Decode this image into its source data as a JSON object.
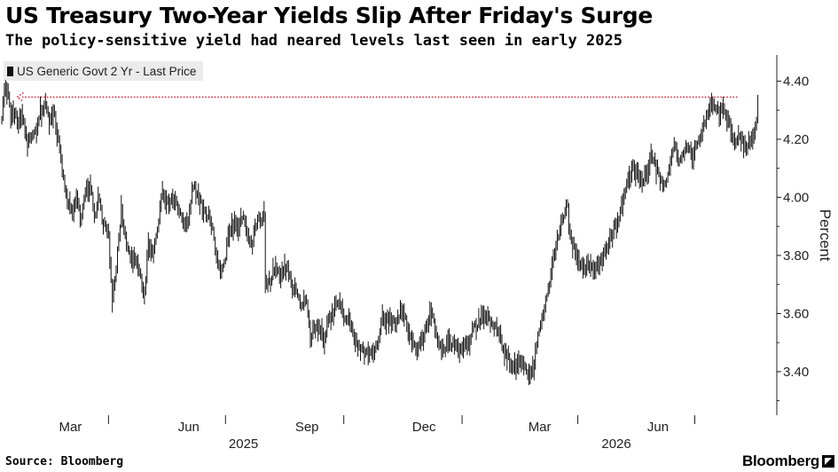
{
  "title": "US Treasury Two-Year Yields Slip After Friday's Surge",
  "subtitle": "The policy-sensitive yield had neared levels last seen in early 2025",
  "legend_label": "US Generic Govt 2 Yr - Last Price",
  "source": "Source: Bloomberg",
  "brand": "Bloomberg",
  "colors": {
    "series": "#111111",
    "arrow": "#e0203a",
    "axis": "#222222",
    "legend_bg": "#ebebeb"
  },
  "chart_data": {
    "type": "line",
    "style": "daily high-low bars",
    "ylabel": "Percent",
    "ylim": [
      3.25,
      4.49
    ],
    "yticks": [
      "4.40",
      "4.20",
      "4.00",
      "3.80",
      "3.60",
      "3.40"
    ],
    "x_month_labels": [
      "Mar",
      "Jun",
      "Sep",
      "Dec",
      "Mar",
      "Jun"
    ],
    "x_year_labels": [
      "2025",
      "2026"
    ],
    "x_start": "2025-01-08",
    "x_end": "2026-08-20",
    "annotation": {
      "type": "arrow",
      "from": "2026-08-03",
      "to": "2025-01-20",
      "level": 4.345,
      "style": "dotted"
    },
    "series": [
      {
        "name": "US Generic Govt 2 Yr - Last Price",
        "points": [
          [
            "2025-01-08",
            4.28
          ],
          [
            "2025-01-10",
            4.36
          ],
          [
            "2025-01-13",
            4.38
          ],
          [
            "2025-01-15",
            4.27
          ],
          [
            "2025-01-17",
            4.3
          ],
          [
            "2025-01-21",
            4.25
          ],
          [
            "2025-01-24",
            4.28
          ],
          [
            "2025-01-28",
            4.19
          ],
          [
            "2025-01-31",
            4.21
          ],
          [
            "2025-02-04",
            4.22
          ],
          [
            "2025-02-07",
            4.29
          ],
          [
            "2025-02-11",
            4.32
          ],
          [
            "2025-02-14",
            4.26
          ],
          [
            "2025-02-18",
            4.28
          ],
          [
            "2025-02-21",
            4.2
          ],
          [
            "2025-02-25",
            4.08
          ],
          [
            "2025-02-28",
            3.98
          ],
          [
            "2025-03-04",
            3.95
          ],
          [
            "2025-03-07",
            3.99
          ],
          [
            "2025-03-11",
            3.93
          ],
          [
            "2025-03-14",
            4.01
          ],
          [
            "2025-03-18",
            4.04
          ],
          [
            "2025-03-21",
            3.94
          ],
          [
            "2025-03-25",
            4.0
          ],
          [
            "2025-03-28",
            3.91
          ],
          [
            "2025-04-01",
            3.89
          ],
          [
            "2025-04-03",
            3.72
          ],
          [
            "2025-04-04",
            3.66
          ],
          [
            "2025-04-07",
            3.75
          ],
          [
            "2025-04-09",
            3.85
          ],
          [
            "2025-04-11",
            3.96
          ],
          [
            "2025-04-15",
            3.84
          ],
          [
            "2025-04-18",
            3.8
          ],
          [
            "2025-04-22",
            3.79
          ],
          [
            "2025-04-25",
            3.76
          ],
          [
            "2025-04-29",
            3.66
          ],
          [
            "2025-05-02",
            3.83
          ],
          [
            "2025-05-06",
            3.79
          ],
          [
            "2025-05-09",
            3.88
          ],
          [
            "2025-05-13",
            4.02
          ],
          [
            "2025-05-16",
            3.98
          ],
          [
            "2025-05-20",
            3.98
          ],
          [
            "2025-05-23",
            3.99
          ],
          [
            "2025-05-27",
            3.96
          ],
          [
            "2025-05-30",
            3.9
          ],
          [
            "2025-06-03",
            3.93
          ],
          [
            "2025-06-06",
            4.04
          ],
          [
            "2025-06-10",
            4.01
          ],
          [
            "2025-06-13",
            3.96
          ],
          [
            "2025-06-17",
            3.94
          ],
          [
            "2025-06-20",
            3.91
          ],
          [
            "2025-06-24",
            3.81
          ],
          [
            "2025-06-27",
            3.74
          ],
          [
            "2025-07-01",
            3.78
          ],
          [
            "2025-07-03",
            3.88
          ],
          [
            "2025-07-08",
            3.9
          ],
          [
            "2025-07-11",
            3.89
          ],
          [
            "2025-07-15",
            3.95
          ],
          [
            "2025-07-18",
            3.87
          ],
          [
            "2025-07-22",
            3.84
          ],
          [
            "2025-07-25",
            3.91
          ],
          [
            "2025-07-29",
            3.93
          ],
          [
            "2025-07-31",
            3.94
          ],
          [
            "2025-08-01",
            3.7
          ],
          [
            "2025-08-05",
            3.71
          ],
          [
            "2025-08-08",
            3.76
          ],
          [
            "2025-08-12",
            3.73
          ],
          [
            "2025-08-15",
            3.75
          ],
          [
            "2025-08-19",
            3.75
          ],
          [
            "2025-08-22",
            3.69
          ],
          [
            "2025-08-26",
            3.67
          ],
          [
            "2025-08-29",
            3.62
          ],
          [
            "2025-09-02",
            3.66
          ],
          [
            "2025-09-05",
            3.52
          ],
          [
            "2025-09-09",
            3.55
          ],
          [
            "2025-09-12",
            3.55
          ],
          [
            "2025-09-16",
            3.51
          ],
          [
            "2025-09-19",
            3.57
          ],
          [
            "2025-09-23",
            3.6
          ],
          [
            "2025-09-26",
            3.65
          ],
          [
            "2025-09-30",
            3.61
          ],
          [
            "2025-10-03",
            3.58
          ],
          [
            "2025-10-07",
            3.57
          ],
          [
            "2025-10-10",
            3.51
          ],
          [
            "2025-10-14",
            3.48
          ],
          [
            "2025-10-17",
            3.46
          ],
          [
            "2025-10-21",
            3.46
          ],
          [
            "2025-10-24",
            3.47
          ],
          [
            "2025-10-28",
            3.5
          ],
          [
            "2025-10-31",
            3.58
          ],
          [
            "2025-11-04",
            3.58
          ],
          [
            "2025-11-07",
            3.58
          ],
          [
            "2025-11-11",
            3.56
          ],
          [
            "2025-11-14",
            3.61
          ],
          [
            "2025-11-18",
            3.58
          ],
          [
            "2025-11-21",
            3.52
          ],
          [
            "2025-11-25",
            3.48
          ],
          [
            "2025-11-28",
            3.49
          ],
          [
            "2025-12-02",
            3.52
          ],
          [
            "2025-12-05",
            3.56
          ],
          [
            "2025-12-09",
            3.61
          ],
          [
            "2025-12-12",
            3.52
          ],
          [
            "2025-12-16",
            3.49
          ],
          [
            "2025-12-19",
            3.48
          ],
          [
            "2025-12-23",
            3.5
          ],
          [
            "2025-12-26",
            3.48
          ],
          [
            "2025-12-30",
            3.47
          ],
          [
            "2026-01-02",
            3.48
          ],
          [
            "2026-01-06",
            3.49
          ],
          [
            "2026-01-09",
            3.54
          ],
          [
            "2026-01-13",
            3.56
          ],
          [
            "2026-01-16",
            3.59
          ],
          [
            "2026-01-20",
            3.6
          ],
          [
            "2026-01-23",
            3.57
          ],
          [
            "2026-01-27",
            3.56
          ],
          [
            "2026-01-30",
            3.53
          ],
          [
            "2026-02-03",
            3.46
          ],
          [
            "2026-02-06",
            3.45
          ],
          [
            "2026-02-10",
            3.42
          ],
          [
            "2026-02-13",
            3.41
          ],
          [
            "2026-02-17",
            3.44
          ],
          [
            "2026-02-20",
            3.4
          ],
          [
            "2026-02-24",
            3.38
          ],
          [
            "2026-02-26",
            3.42
          ],
          [
            "2026-02-28",
            3.5
          ],
          [
            "2026-03-03",
            3.55
          ],
          [
            "2026-03-06",
            3.61
          ],
          [
            "2026-03-10",
            3.7
          ],
          [
            "2026-03-13",
            3.79
          ],
          [
            "2026-03-17",
            3.87
          ],
          [
            "2026-03-20",
            3.93
          ],
          [
            "2026-03-24",
            3.97
          ],
          [
            "2026-03-26",
            3.86
          ],
          [
            "2026-03-30",
            3.82
          ],
          [
            "2026-04-02",
            3.78
          ],
          [
            "2026-04-06",
            3.75
          ],
          [
            "2026-04-09",
            3.79
          ],
          [
            "2026-04-13",
            3.74
          ],
          [
            "2026-04-16",
            3.76
          ],
          [
            "2026-04-20",
            3.79
          ],
          [
            "2026-04-23",
            3.82
          ],
          [
            "2026-04-27",
            3.86
          ],
          [
            "2026-04-30",
            3.9
          ],
          [
            "2026-05-04",
            3.93
          ],
          [
            "2026-05-07",
            4.02
          ],
          [
            "2026-05-11",
            4.06
          ],
          [
            "2026-05-14",
            4.1
          ],
          [
            "2026-05-18",
            4.07
          ],
          [
            "2026-05-21",
            4.05
          ],
          [
            "2026-05-25",
            4.08
          ],
          [
            "2026-05-28",
            4.15
          ],
          [
            "2026-06-01",
            4.1
          ],
          [
            "2026-06-04",
            4.07
          ],
          [
            "2026-06-08",
            4.04
          ],
          [
            "2026-06-11",
            4.1
          ],
          [
            "2026-06-15",
            4.18
          ],
          [
            "2026-06-18",
            4.12
          ],
          [
            "2026-06-22",
            4.15
          ],
          [
            "2026-06-25",
            4.18
          ],
          [
            "2026-06-29",
            4.14
          ],
          [
            "2026-07-02",
            4.17
          ],
          [
            "2026-07-06",
            4.21
          ],
          [
            "2026-07-09",
            4.27
          ],
          [
            "2026-07-13",
            4.31
          ],
          [
            "2026-07-16",
            4.33
          ],
          [
            "2026-07-20",
            4.28
          ],
          [
            "2026-07-23",
            4.3
          ],
          [
            "2026-07-27",
            4.26
          ],
          [
            "2026-07-30",
            4.22
          ],
          [
            "2026-08-03",
            4.19
          ],
          [
            "2026-08-06",
            4.21
          ],
          [
            "2026-08-10",
            4.16
          ],
          [
            "2026-08-12",
            4.2
          ],
          [
            "2026-08-14",
            4.19
          ],
          [
            "2026-08-17",
            4.23
          ],
          [
            "2026-08-18",
            4.25
          ],
          [
            "2026-08-19",
            4.34
          ],
          [
            "2026-08-20",
            4.33
          ]
        ]
      }
    ]
  }
}
